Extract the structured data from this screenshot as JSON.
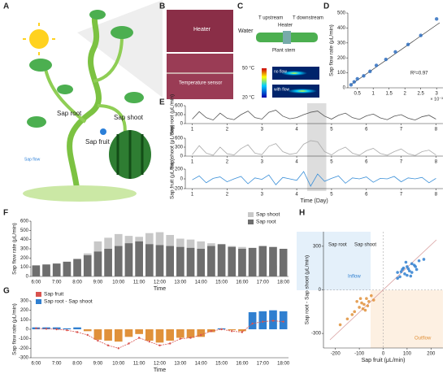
{
  "panel_labels": [
    "A",
    "B",
    "C",
    "D",
    "E",
    "F",
    "G",
    "H"
  ],
  "illustration": {
    "sap_root": "Sap root",
    "sap_shoot": "Sap shoot",
    "sap_fruit": "Sap fruit",
    "sap_flow": "Sap flow"
  },
  "photo": {
    "heater": "Heater",
    "sensor": "Temperature sensor"
  },
  "schematic": {
    "water": "Water",
    "t_up": "T upstream",
    "t_down": "T downstream",
    "heater": "Heater",
    "stem": "Plant stem",
    "cmax": "50 °C",
    "cmin": "20 °C",
    "no_flow": "no flow",
    "with_flow": "with flow"
  },
  "chart_data": [
    {
      "type": "scatter",
      "ylabel": "Sap flow rate (μL/min)",
      "xnote": "× 10⁻³",
      "annotation": "R²=0.97",
      "xlim": [
        0.2,
        3.2
      ],
      "xticks": [
        0.5,
        1,
        1.5,
        2,
        2.5,
        3
      ],
      "ylim": [
        0,
        500
      ],
      "yticks": [
        0,
        100,
        200,
        300,
        400,
        500
      ],
      "series": [
        {
          "color": "#2f6fc0",
          "x": [
            0.3,
            0.4,
            0.5,
            0.7,
            0.9,
            1.1,
            1.4,
            1.7,
            2.1,
            2.5,
            3.0
          ],
          "values": [
            20,
            40,
            60,
            80,
            110,
            150,
            190,
            240,
            290,
            350,
            460
          ]
        }
      ]
    },
    {
      "type": "line",
      "ylabel": "Sap root (μL/min)",
      "xlim": [
        0.8,
        8.2
      ],
      "xticks": [
        1,
        2,
        3,
        4,
        5,
        6,
        7,
        8
      ],
      "ylim": [
        0,
        600
      ],
      "yticks": [
        0,
        300,
        600
      ],
      "series": [
        {
          "color": "#555555",
          "x": [
            1,
            1.2,
            1.4,
            1.6,
            1.8,
            2,
            2.2,
            2.4,
            2.6,
            2.8,
            3,
            3.2,
            3.4,
            3.6,
            3.8,
            4,
            4.2,
            4.4,
            4.6,
            4.8,
            5,
            5.2,
            5.4,
            5.6,
            5.8,
            6,
            6.2,
            6.4,
            6.6,
            6.8,
            7,
            7.2,
            7.4,
            7.6,
            7.8,
            8
          ],
          "values": [
            150,
            400,
            200,
            120,
            350,
            180,
            130,
            300,
            420,
            200,
            150,
            380,
            450,
            250,
            160,
            200,
            300,
            380,
            420,
            250,
            150,
            280,
            350,
            200,
            140,
            260,
            320,
            190,
            130,
            250,
            300,
            180,
            120,
            230,
            280,
            150
          ]
        }
      ]
    },
    {
      "type": "line",
      "ylabel": "Sap shoot (μL/min)",
      "xlim": [
        0.8,
        8.2
      ],
      "xticks": [
        1,
        2,
        3,
        4,
        5,
        6,
        7,
        8
      ],
      "ylim": [
        0,
        600
      ],
      "yticks": [
        0,
        300,
        600
      ],
      "series": [
        {
          "color": "#aaaaaa",
          "x": [
            1,
            1.2,
            1.4,
            1.6,
            1.8,
            2,
            2.2,
            2.4,
            2.6,
            2.8,
            3,
            3.2,
            3.4,
            3.6,
            3.8,
            4,
            4.2,
            4.4,
            4.6,
            4.8,
            5,
            5.2,
            5.4,
            5.6,
            5.8,
            6,
            6.2,
            6.4,
            6.6,
            6.8,
            7,
            7.2,
            7.4,
            7.6,
            7.8,
            8
          ],
          "values": [
            50,
            350,
            100,
            30,
            300,
            80,
            40,
            250,
            380,
            100,
            50,
            330,
            420,
            150,
            60,
            100,
            400,
            520,
            480,
            150,
            40,
            200,
            300,
            100,
            30,
            180,
            260,
            90,
            30,
            150,
            240,
            80,
            20,
            150,
            200,
            40
          ]
        }
      ]
    },
    {
      "type": "line",
      "ylabel": "Sap fruit (μL/min)",
      "xlabel": "Time (Day)",
      "xlim": [
        0.8,
        8.2
      ],
      "xticks": [
        1,
        2,
        3,
        4,
        5,
        6,
        7,
        8
      ],
      "ylim": [
        -200,
        200
      ],
      "yticks": [
        -200,
        0,
        200
      ],
      "series": [
        {
          "color": "#3a8fd8",
          "x": [
            1,
            1.2,
            1.4,
            1.6,
            1.8,
            2,
            2.2,
            2.4,
            2.6,
            2.8,
            3,
            3.2,
            3.4,
            3.6,
            3.8,
            4,
            4.2,
            4.4,
            4.6,
            4.8,
            5,
            5.2,
            5.4,
            5.6,
            5.8,
            6,
            6.2,
            6.4,
            6.6,
            6.8,
            7,
            7.2,
            7.4,
            7.6,
            7.8,
            8
          ],
          "values": [
            -20,
            60,
            -80,
            10,
            40,
            -60,
            0,
            50,
            -100,
            20,
            -10,
            80,
            -120,
            30,
            0,
            -30,
            150,
            -150,
            100,
            -50,
            10,
            60,
            -90,
            20,
            0,
            40,
            -70,
            10,
            0,
            50,
            -60,
            20,
            0,
            30,
            -80,
            10
          ]
        }
      ]
    },
    {
      "type": "bar",
      "overlap": true,
      "ylabel": "Sap flow rate (μL/min)",
      "xlabel": "Time",
      "legend": "upper right",
      "ylim": [
        0,
        600
      ],
      "yticks": [
        0,
        100,
        200,
        300,
        400,
        500,
        600
      ],
      "categories": [
        "6:00",
        null,
        "7:00",
        null,
        "8:00",
        null,
        "9:00",
        null,
        "10:00",
        null,
        "11:00",
        null,
        "12:00",
        null,
        "13:00",
        null,
        "14:00",
        null,
        "15:00",
        null,
        "16:00",
        null,
        "17:00",
        null,
        "18:00"
      ],
      "series": [
        {
          "name": "Sap shoot",
          "color": "#c8c8c8",
          "values": [
            100,
            110,
            120,
            150,
            170,
            250,
            380,
            420,
            460,
            440,
            430,
            470,
            480,
            450,
            410,
            400,
            380,
            360,
            340,
            330,
            320,
            130,
            140,
            120,
            110
          ]
        },
        {
          "name": "Sap root",
          "color": "#6e6e6e",
          "values": [
            120,
            130,
            140,
            160,
            190,
            230,
            270,
            300,
            330,
            360,
            380,
            350,
            340,
            330,
            320,
            310,
            300,
            330,
            350,
            320,
            300,
            310,
            330,
            320,
            300
          ]
        }
      ]
    },
    {
      "type": "bar",
      "ylabel": "Sap flow rate (μL/min)",
      "xlabel": "Time",
      "legend": "upper left",
      "ylim": [
        -300,
        300
      ],
      "yticks": [
        -300,
        -200,
        -100,
        0,
        100,
        200,
        300
      ],
      "categories": [
        "6:00",
        null,
        "7:00",
        null,
        "8:00",
        null,
        "9:00",
        null,
        "10:00",
        null,
        "11:00",
        null,
        "12:00",
        null,
        "13:00",
        null,
        "14:00",
        null,
        "15:00",
        null,
        "16:00",
        null,
        "17:00",
        null,
        "18:00"
      ],
      "series": [
        {
          "name": "Sap fruit",
          "type": "line",
          "color": "#d9534f",
          "values": [
            10,
            5,
            0,
            -10,
            -30,
            -60,
            -120,
            -170,
            -200,
            -150,
            -90,
            -130,
            -170,
            -150,
            -100,
            -90,
            -60,
            -20,
            0,
            -20,
            -30,
            60,
            80,
            90,
            80
          ]
        },
        {
          "name": "Sap root - Sap shoot",
          "color": "#2f7fd0",
          "negative_color": "#e0913a",
          "values": [
            20,
            20,
            20,
            10,
            20,
            -20,
            -110,
            -120,
            -130,
            -80,
            -50,
            -120,
            -140,
            -120,
            -90,
            -90,
            -80,
            -30,
            10,
            -10,
            -20,
            180,
            190,
            200,
            190
          ]
        }
      ]
    },
    {
      "type": "scatter",
      "xlabel": "Sap fruit (μL/min)",
      "ylabel": "Sap root - Sap shoot (μL/min)",
      "xlim": [
        -250,
        250
      ],
      "xticks": [
        -200,
        -100,
        0,
        100,
        200
      ],
      "ylim": [
        -400,
        400
      ],
      "yticks": [
        -300,
        0,
        300
      ],
      "annotations": [
        "Inflow",
        "Outflow",
        "Sap root",
        "Sap shoot"
      ],
      "series": [
        {
          "color": "#2f7fd0",
          "x": [
            60,
            80,
            100,
            90,
            120,
            70,
            110,
            130,
            150,
            100,
            85,
            140,
            95,
            60,
            120,
            170,
            105,
            75,
            135,
            115
          ],
          "values": [
            120,
            140,
            160,
            110,
            180,
            90,
            130,
            170,
            200,
            100,
            150,
            140,
            190,
            80,
            120,
            210,
            145,
            125,
            160,
            95
          ]
        },
        {
          "color": "#e0913a",
          "x": [
            -60,
            -80,
            -100,
            -70,
            -120,
            -90,
            -50,
            -110,
            -40,
            -130,
            -85,
            -65,
            -150,
            -95,
            -75,
            -180
          ],
          "values": [
            -80,
            -100,
            -120,
            -60,
            -150,
            -90,
            -40,
            -80,
            -70,
            -170,
            -130,
            -110,
            -200,
            -60,
            -140,
            -240
          ]
        }
      ]
    }
  ]
}
